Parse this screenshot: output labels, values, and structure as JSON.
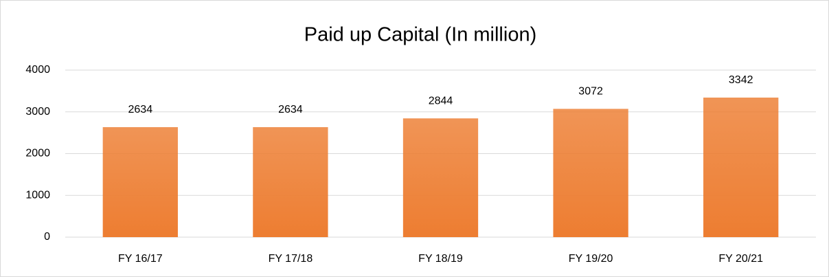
{
  "chart_data": {
    "type": "bar",
    "title": "Paid up Capital (In million)",
    "categories": [
      "FY 16/17",
      "FY 17/18",
      "FY 18/19",
      "FY 19/20",
      "FY 20/21"
    ],
    "values": [
      2634,
      2634,
      2844,
      3072,
      3342
    ],
    "color": "#ed7d31",
    "ylim": [
      0,
      4000
    ],
    "yticks": [
      0,
      1000,
      2000,
      3000,
      4000
    ],
    "grid": true
  }
}
